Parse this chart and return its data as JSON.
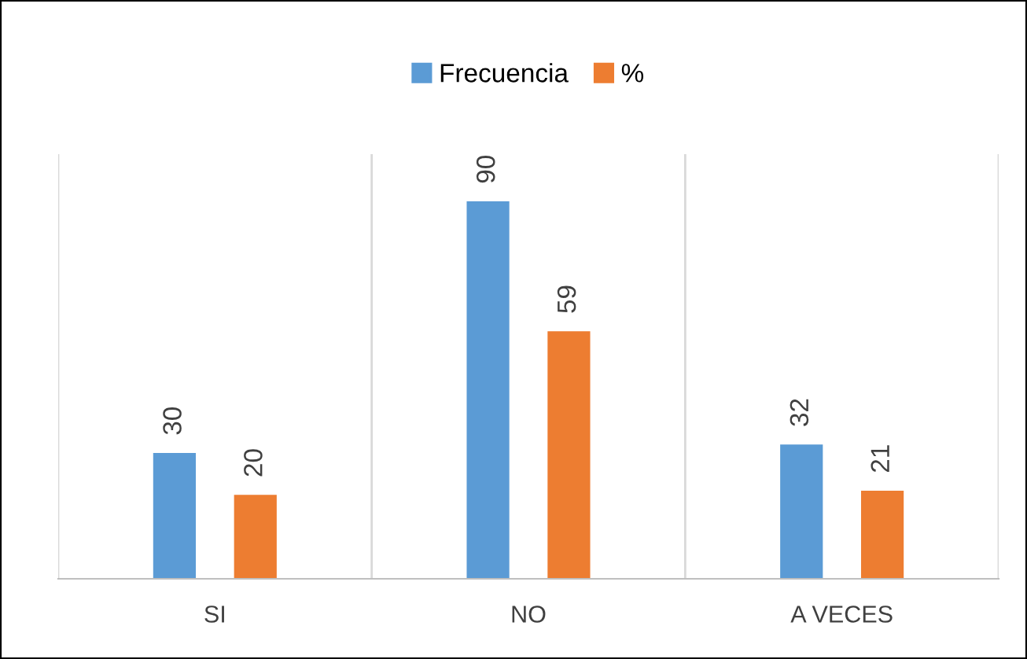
{
  "chart_data": {
    "type": "bar",
    "categories": [
      "SI",
      "NO",
      "A VECES"
    ],
    "series": [
      {
        "name": "Frecuencia",
        "color": "#5b9bd5",
        "values": [
          30,
          90,
          32
        ]
      },
      {
        "name": "%",
        "color": "#ed7d31",
        "values": [
          20,
          59,
          21
        ]
      }
    ],
    "data_labels": true,
    "grid": "x",
    "legend": "top"
  }
}
